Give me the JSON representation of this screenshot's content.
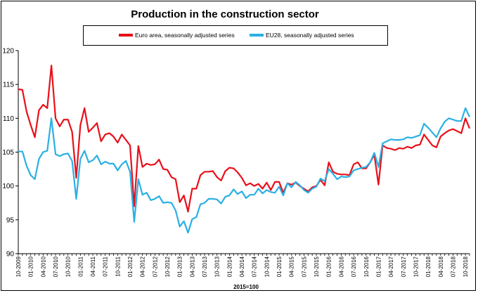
{
  "chart_data": {
    "type": "line",
    "title": "Production in the construction sector",
    "xlabel": "2015=100",
    "ylabel": "",
    "ylim": [
      90,
      120
    ],
    "yticks": [
      90,
      95,
      100,
      105,
      110,
      115,
      120
    ],
    "start": "10-2009",
    "x_tick_labels": [
      "10-2009",
      "01-2010",
      "04-2010",
      "07-2010",
      "10-2010",
      "01-2011",
      "04-2011",
      "07-2011",
      "10-2011",
      "01-2012",
      "04-2012",
      "07-2012",
      "10-2012",
      "01-2013",
      "04-2013",
      "07-2013",
      "10-2013",
      "01-2014",
      "04-2014",
      "07-2014",
      "10-2014",
      "01-2015",
      "04-2015",
      "07-2015",
      "10-2015",
      "01-2016",
      "04-2016",
      "07-2016",
      "10-2016",
      "01-2017",
      "04-2017",
      "07-2017",
      "10-2017",
      "01-2018",
      "04-2018",
      "07-2018",
      "10-2018"
    ],
    "grid": false,
    "legend_placement": "top",
    "series": [
      {
        "name": "Euro area, seasonally adjusted series",
        "color": "#e8101a",
        "values": [
          114.3,
          114.2,
          111.0,
          109.0,
          107.2,
          111.2,
          112.0,
          111.5,
          117.8,
          110.0,
          108.8,
          109.8,
          109.8,
          108.0,
          101.2,
          109.0,
          111.5,
          108.0,
          108.6,
          109.3,
          106.6,
          107.6,
          107.8,
          107.3,
          106.4,
          107.6,
          106.8,
          106.0,
          97.0,
          105.9,
          102.8,
          103.3,
          103.1,
          103.2,
          103.9,
          102.5,
          102.4,
          101.3,
          101.0,
          97.6,
          98.6,
          96.2,
          99.6,
          99.6,
          101.6,
          102.1,
          102.1,
          102.2,
          101.3,
          100.8,
          102.2,
          102.7,
          102.6,
          102.0,
          101.2,
          100.1,
          100.4,
          100.0,
          100.3,
          99.6,
          100.5,
          99.4,
          100.6,
          100.6,
          99.0,
          100.4,
          100.2,
          100.5,
          100.0,
          99.6,
          99.2,
          99.8,
          100.0,
          100.9,
          100.1,
          103.5,
          102.1,
          101.8,
          101.7,
          101.7,
          101.6,
          103.2,
          103.5,
          102.6,
          102.6,
          103.5,
          104.6,
          100.2,
          106.0,
          105.6,
          105.5,
          105.3,
          105.6,
          105.5,
          105.8,
          105.6,
          106.0,
          106.1,
          107.6,
          106.8,
          106.0,
          105.7,
          107.3,
          107.8,
          108.2,
          108.4,
          108.1,
          107.8,
          110.0,
          108.5
        ]
      },
      {
        "name": "EU28, seasonally adjusted series",
        "color": "#2ab0e4",
        "values": [
          105.1,
          105.1,
          103.0,
          101.6,
          101.0,
          104.0,
          105.0,
          105.2,
          110.0,
          104.7,
          104.4,
          104.7,
          104.8,
          103.7,
          98.1,
          104.0,
          105.2,
          103.5,
          103.8,
          104.5,
          103.2,
          103.6,
          103.3,
          103.3,
          102.3,
          103.2,
          103.7,
          102.1,
          94.7,
          101.0,
          98.7,
          99.0,
          97.9,
          98.1,
          98.5,
          97.5,
          97.6,
          97.5,
          96.4,
          94.0,
          94.8,
          93.1,
          95.1,
          95.4,
          97.3,
          97.5,
          98.1,
          98.1,
          98.0,
          97.4,
          98.4,
          98.6,
          99.5,
          98.8,
          99.2,
          98.2,
          98.7,
          98.7,
          99.6,
          98.9,
          99.4,
          99.1,
          99.0,
          99.9,
          98.6,
          100.4,
          99.8,
          100.6,
          100.1,
          99.4,
          99.0,
          99.6,
          99.9,
          101.1,
          100.7,
          102.5,
          101.8,
          101.0,
          101.4,
          101.3,
          101.4,
          102.3,
          102.5,
          102.7,
          102.8,
          103.5,
          104.9,
          102.8,
          106.3,
          106.6,
          106.9,
          106.8,
          106.8,
          106.9,
          107.2,
          107.1,
          107.3,
          107.5,
          109.2,
          108.6,
          107.9,
          107.2,
          108.5,
          109.5,
          110.0,
          109.8,
          109.6,
          109.6,
          111.5,
          110.2
        ]
      }
    ]
  }
}
